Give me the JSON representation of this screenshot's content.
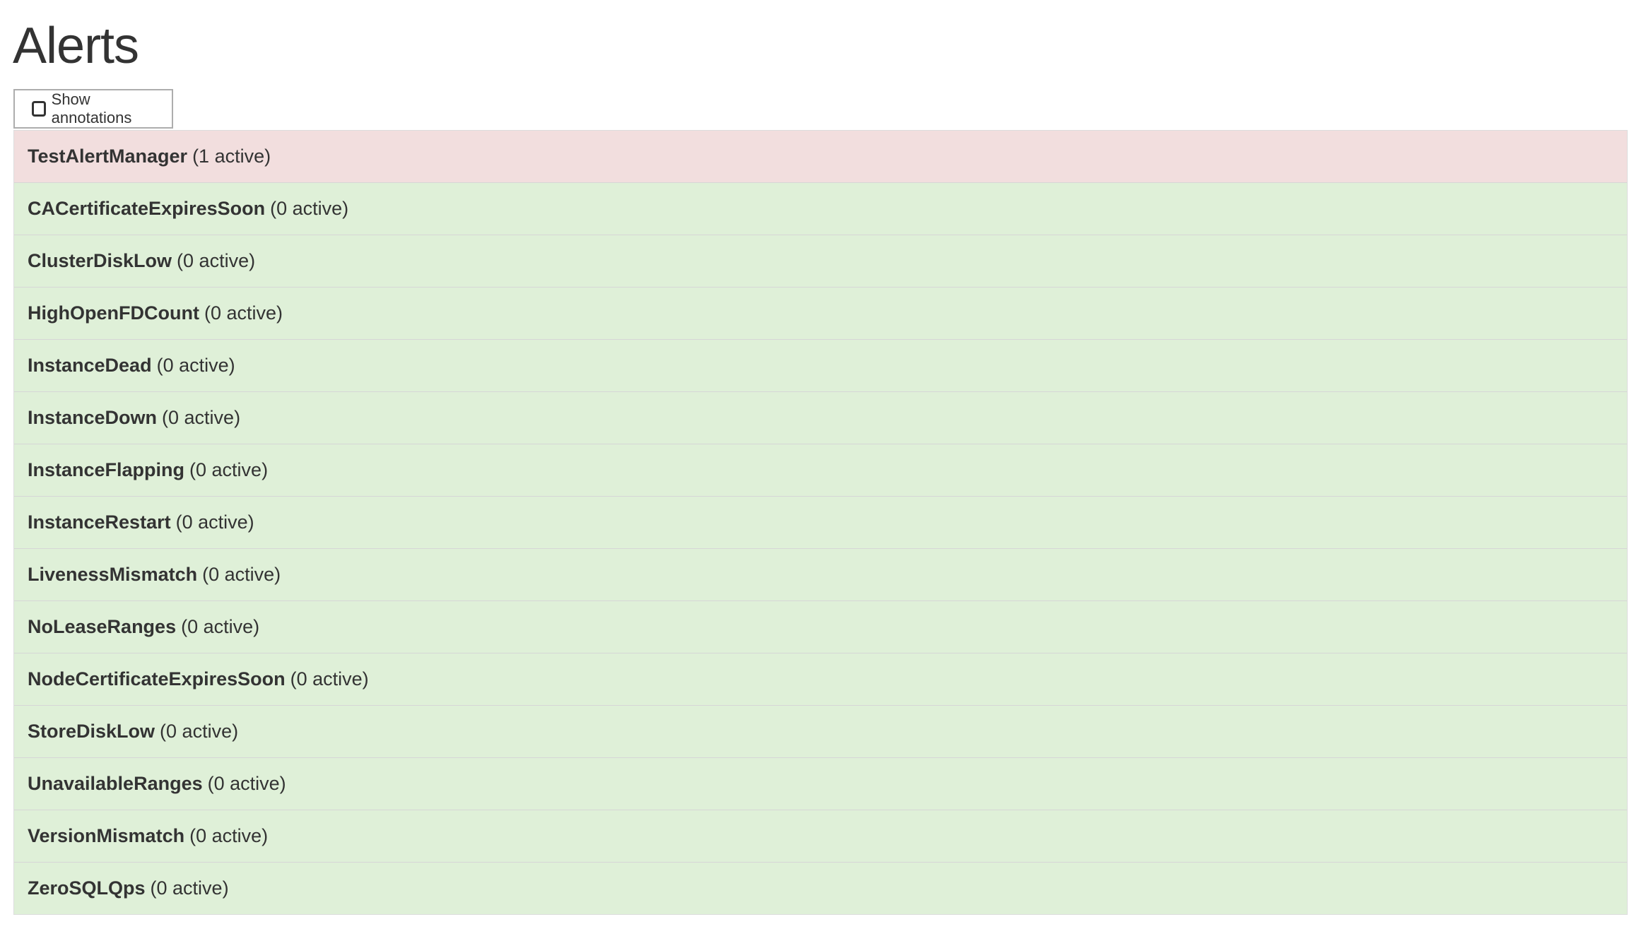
{
  "page_title": "Alerts",
  "toggle": {
    "label": "Show annotations",
    "checked": false
  },
  "colors": {
    "firing": "#f2dede",
    "inactive": "#dff0d8"
  },
  "alerts": [
    {
      "name": "TestAlertManager",
      "count": "(1 active)",
      "state": "firing"
    },
    {
      "name": "CACertificateExpiresSoon",
      "count": "(0 active)",
      "state": "ok"
    },
    {
      "name": "ClusterDiskLow",
      "count": "(0 active)",
      "state": "ok"
    },
    {
      "name": "HighOpenFDCount",
      "count": "(0 active)",
      "state": "ok"
    },
    {
      "name": "InstanceDead",
      "count": "(0 active)",
      "state": "ok"
    },
    {
      "name": "InstanceDown",
      "count": "(0 active)",
      "state": "ok"
    },
    {
      "name": "InstanceFlapping",
      "count": "(0 active)",
      "state": "ok"
    },
    {
      "name": "InstanceRestart",
      "count": "(0 active)",
      "state": "ok"
    },
    {
      "name": "LivenessMismatch",
      "count": "(0 active)",
      "state": "ok"
    },
    {
      "name": "NoLeaseRanges",
      "count": "(0 active)",
      "state": "ok"
    },
    {
      "name": "NodeCertificateExpiresSoon",
      "count": "(0 active)",
      "state": "ok"
    },
    {
      "name": "StoreDiskLow",
      "count": "(0 active)",
      "state": "ok"
    },
    {
      "name": "UnavailableRanges",
      "count": "(0 active)",
      "state": "ok"
    },
    {
      "name": "VersionMismatch",
      "count": "(0 active)",
      "state": "ok"
    },
    {
      "name": "ZeroSQLQps",
      "count": "(0 active)",
      "state": "ok"
    }
  ]
}
